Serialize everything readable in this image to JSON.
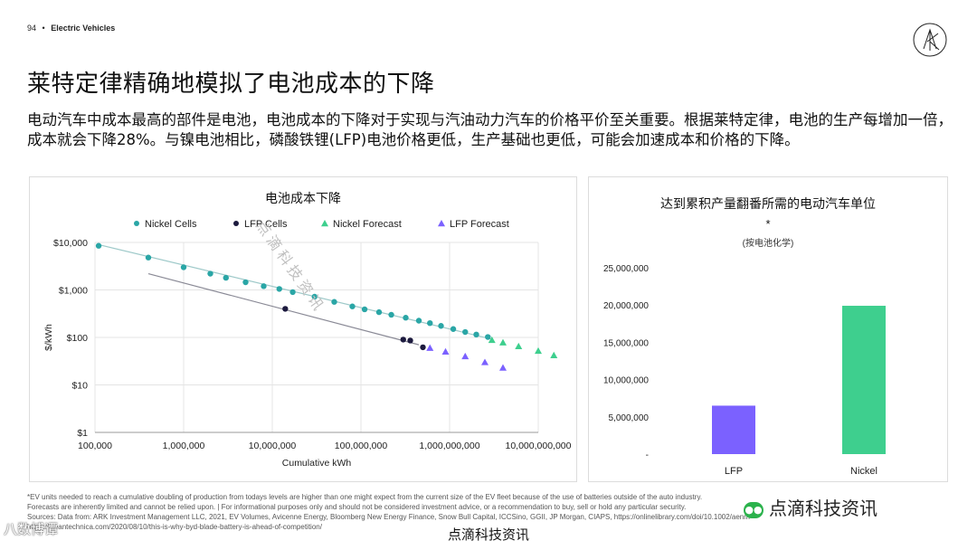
{
  "header": {
    "page_number": "94",
    "separator": "•",
    "section": "Electric Vehicles"
  },
  "logo": {
    "icon": "ark-logo-icon"
  },
  "title": "莱特定律精确地模拟了电池成本的下降",
  "body_text": "电动汽车中成本最高的部件是电池，电池成本的下降对于实现与汽油动力汽车的价格平价至关重要。根据莱特定律，电池的生产每增加一倍，成本就会下降28%。与镍电池相比，磷酸铁锂(LFP)电池价格更低，生产基础也更低，可能会加速成本和价格的下降。",
  "colors": {
    "nickel": "#2aa6a6",
    "lfp": "#1c1a3e",
    "nickel_forecast": "#3ecf8e",
    "lfp_forecast": "#7b61ff",
    "bar_lfp": "#7b61ff",
    "bar_nickel": "#3ecf8e"
  },
  "chart_data": [
    {
      "type": "scatter",
      "title": "电池成本下降",
      "xlabel": "Cumulative kWh",
      "ylabel": "$/kWh",
      "xscale": "log",
      "yscale": "log",
      "xlim": [
        100000,
        10000000000
      ],
      "ylim": [
        1,
        10000
      ],
      "grid": true,
      "legend": "top",
      "x_ticks": [
        "100,000",
        "1,000,000",
        "10,000,000",
        "100,000,000",
        "1,000,000,000",
        "10,000,000,000"
      ],
      "y_ticks": [
        "$1",
        "$10",
        "$100",
        "$1,000",
        "$10,000"
      ],
      "series": [
        {
          "name": "Nickel Cells",
          "marker": "circle",
          "points": [
            [
              110000,
              8500
            ],
            [
              400000,
              4800
            ],
            [
              1000000,
              3000
            ],
            [
              2000000,
              2200
            ],
            [
              3000000,
              1800
            ],
            [
              5000000,
              1450
            ],
            [
              8000000,
              1200
            ],
            [
              12000000,
              1050
            ],
            [
              17000000,
              900
            ],
            [
              30000000,
              720
            ],
            [
              50000000,
              560
            ],
            [
              80000000,
              450
            ],
            [
              110000000,
              390
            ],
            [
              160000000,
              340
            ],
            [
              220000000,
              300
            ],
            [
              320000000,
              260
            ],
            [
              450000000,
              225
            ],
            [
              600000000,
              200
            ],
            [
              800000000,
              175
            ],
            [
              1100000000,
              150
            ],
            [
              1500000000,
              130
            ],
            [
              2000000000,
              115
            ],
            [
              2700000000,
              102
            ]
          ]
        },
        {
          "name": "LFP Cells",
          "marker": "circle",
          "points": [
            [
              14000000,
              400
            ],
            [
              300000000,
              90
            ],
            [
              360000000,
              86
            ],
            [
              500000000,
              62
            ]
          ]
        },
        {
          "name": "Nickel Forecast",
          "marker": "triangle",
          "points": [
            [
              3000000000,
              88
            ],
            [
              4000000000,
              78
            ],
            [
              6000000000,
              65
            ],
            [
              10000000000,
              52
            ],
            [
              15000000000,
              42
            ]
          ]
        },
        {
          "name": "LFP Forecast",
          "marker": "triangle",
          "points": [
            [
              600000000,
              60
            ],
            [
              900000000,
              50
            ],
            [
              1500000000,
              40
            ],
            [
              2500000000,
              30
            ],
            [
              4000000000,
              23
            ]
          ]
        }
      ],
      "trendlines": [
        {
          "series": "Nickel Cells",
          "from": [
            110000,
            9000
          ],
          "to": [
            3000000000,
            92
          ]
        },
        {
          "series": "LFP Cells",
          "from": [
            400000,
            2200
          ],
          "to": [
            450000000,
            70
          ]
        }
      ]
    },
    {
      "type": "bar",
      "title": "达到累积产量翻番所需的电动汽车单位",
      "title_marker": "*",
      "subtitle": "(按电池化学)",
      "categories": [
        "LFP",
        "Nickel"
      ],
      "values": [
        6500000,
        19900000
      ],
      "ylim": [
        0,
        25000000
      ],
      "y_ticks": [
        "-",
        "5,000,000",
        "10,000,000",
        "15,000,000",
        "20,000,000",
        "25,000,000"
      ]
    }
  ],
  "footnotes": [
    "*EV units needed to reach a cumulative doubling of production from todays levels are higher than one might expect from the current size of the EV fleet because of the use of batteries outside of the auto industry.",
    "Forecasts are inherently limited and cannot be relied upon. | For informational purposes only and should not be considered investment advice, or a recommendation to buy, sell or hold any particular security.",
    "Sources: Data from: ARK Investment Management LLC, 2021, EV Volumes, Avicenne Energy, Bloomberg New Energy Finance, Snow Bull Capital, ICCSino, GGII, JP Morgan, CIAPS, https://onlinelibrary.com/doi/10.1002/aenm",
    "https://cleantechnica.com/2020/08/10/this-is-why-byd-blade-battery-is-ahead-of-competition/"
  ],
  "source_caption": "点滴科技资讯",
  "watermarks": {
    "wechat": "点滴科技资讯",
    "wechat_icon": "wechat-icon",
    "corner": "八数博谭",
    "diagonal": "点滴科技资讯"
  }
}
